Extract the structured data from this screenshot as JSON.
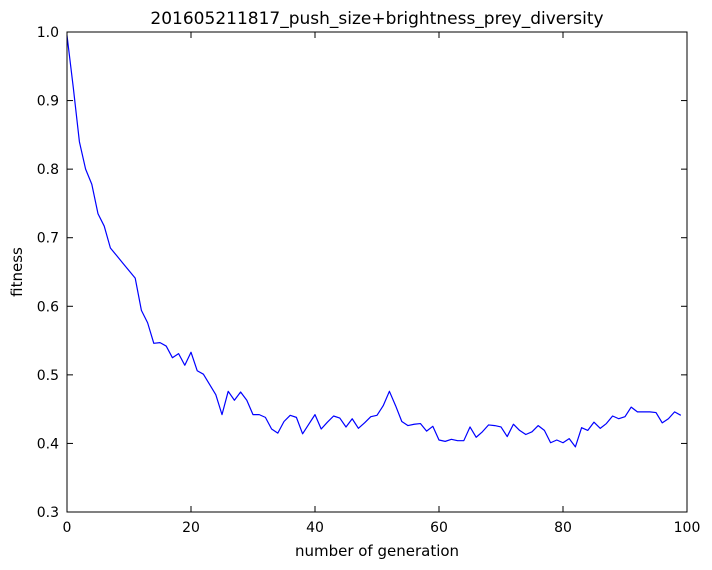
{
  "chart_data": {
    "type": "line",
    "title": "201605211817_push_size+brightness_prey_diversity",
    "xlabel": "number of generation",
    "ylabel": "fitness",
    "xlim": [
      0,
      100
    ],
    "ylim": [
      0.3,
      1.0
    ],
    "x_ticks": [
      0,
      20,
      40,
      60,
      80,
      100
    ],
    "y_ticks": [
      0.3,
      0.4,
      0.5,
      0.6,
      0.7,
      0.8,
      0.9,
      1.0
    ],
    "x_tick_labels": [
      "0",
      "20",
      "40",
      "60",
      "80",
      "100"
    ],
    "y_tick_labels": [
      "0.3",
      "0.4",
      "0.5",
      "0.6",
      "0.7",
      "0.8",
      "0.9",
      "1.0"
    ],
    "grid": false,
    "legend": "none",
    "series": [
      {
        "color": "#0000ff",
        "x": [
          0,
          1,
          2,
          3,
          4,
          5,
          6,
          7,
          8,
          9,
          10,
          11,
          12,
          13,
          14,
          15,
          16,
          17,
          18,
          19,
          20,
          21,
          22,
          23,
          24,
          25,
          26,
          27,
          28,
          29,
          30,
          31,
          32,
          33,
          34,
          35,
          36,
          37,
          38,
          39,
          40,
          41,
          42,
          43,
          44,
          45,
          46,
          47,
          48,
          49,
          50,
          51,
          52,
          53,
          54,
          55,
          56,
          57,
          58,
          59,
          60,
          61,
          62,
          63,
          64,
          65,
          66,
          67,
          68,
          69,
          70,
          71,
          72,
          73,
          74,
          75,
          76,
          77,
          78,
          79,
          80,
          81,
          82,
          83,
          84,
          85,
          86,
          87,
          88,
          89,
          90,
          91,
          92,
          93,
          94,
          95,
          96,
          97,
          98,
          99
        ],
        "values": [
          0.995,
          0.92,
          0.84,
          0.8,
          0.778,
          0.735,
          0.717,
          0.685,
          0.674,
          0.663,
          0.652,
          0.641,
          0.594,
          0.576,
          0.546,
          0.547,
          0.542,
          0.525,
          0.531,
          0.514,
          0.533,
          0.506,
          0.501,
          0.486,
          0.471,
          0.442,
          0.476,
          0.463,
          0.475,
          0.463,
          0.442,
          0.442,
          0.438,
          0.421,
          0.415,
          0.432,
          0.441,
          0.438,
          0.414,
          0.428,
          0.442,
          0.421,
          0.431,
          0.44,
          0.437,
          0.424,
          0.436,
          0.422,
          0.43,
          0.439,
          0.441,
          0.455,
          0.476,
          0.455,
          0.432,
          0.426,
          0.428,
          0.429,
          0.418,
          0.425,
          0.405,
          0.403,
          0.406,
          0.404,
          0.404,
          0.424,
          0.409,
          0.417,
          0.427,
          0.426,
          0.424,
          0.41,
          0.428,
          0.419,
          0.413,
          0.417,
          0.426,
          0.419,
          0.401,
          0.405,
          0.401,
          0.407,
          0.395,
          0.423,
          0.419,
          0.431,
          0.422,
          0.429,
          0.44,
          0.436,
          0.439,
          0.453,
          0.446,
          0.446,
          0.446,
          0.445,
          0.43,
          0.436,
          0.446,
          0.441
        ]
      }
    ]
  }
}
